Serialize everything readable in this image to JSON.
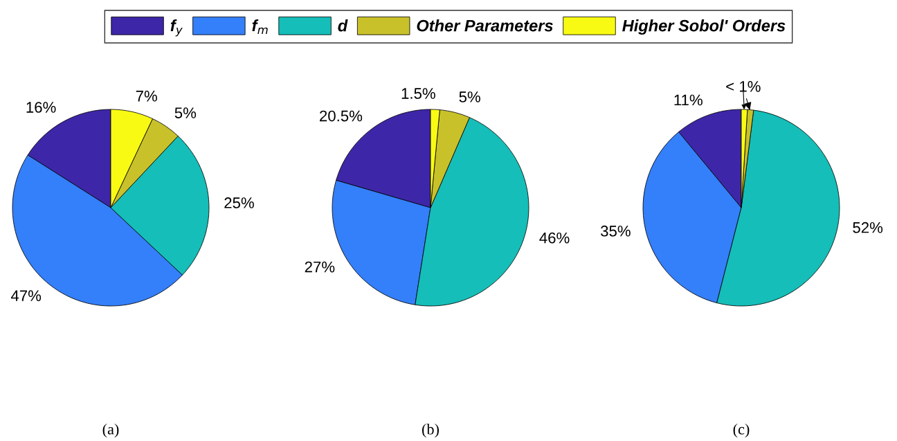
{
  "chart_data": [
    {
      "type": "pie",
      "xlabel": "(a)",
      "legend": "top",
      "categories": [
        "f$_{y}$",
        "f$_{m}$",
        "d",
        "Other Parameters",
        "Higher Sobol' Orders"
      ],
      "colors": [
        "#3e26a8",
        "#347ffa",
        "#15beb8",
        "#c9c12a",
        "#f8fa14"
      ],
      "values": [
        16,
        47,
        25,
        5,
        7
      ],
      "value_labels": [
        "16%",
        "47%",
        "25%",
        "5%",
        "7%"
      ]
    },
    {
      "type": "pie",
      "xlabel": "(b)",
      "categories": [
        null,
        null,
        null,
        null,
        null
      ],
      "colors": [
        "#3e26a8",
        "#347ffa",
        "#15beb8",
        "#c9c12a",
        "#f8fa14"
      ],
      "values": [
        20.5,
        27,
        46,
        5,
        1.5
      ],
      "value_labels": [
        "20.5%",
        "27%",
        "46%",
        "5%",
        "1.5%"
      ]
    },
    {
      "type": "pie",
      "xlabel": "(c)",
      "categories": [
        null,
        null,
        null,
        null,
        null
      ],
      "colors": [
        "#3e26a8",
        "#347ffa",
        "#15beb8",
        "#c9c12a",
        "#f8fa14"
      ],
      "values": [
        11,
        35,
        52,
        1,
        1
      ],
      "value_labels": [
        "11%",
        "35%",
        "52%",
        null,
        null
      ],
      "annotations": [
        "< 1%"
      ]
    }
  ]
}
